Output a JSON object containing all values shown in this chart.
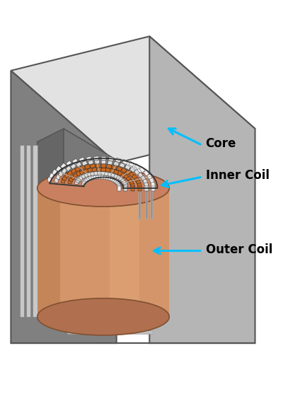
{
  "background_color": "#ffffff",
  "labels": {
    "core": "Core",
    "inner_coil": "Inner Coil",
    "outer_coil": "Outer Coil"
  },
  "label_color": "#000000",
  "arrow_color": "#00BFFF",
  "label_fontsize": 12,
  "label_fontweight": "bold",
  "colors": {
    "core_top_face": "#e8e8e8",
    "core_right_face": "#b8b8b8",
    "core_front_face": "#888888",
    "core_inner_wall": "#707070",
    "core_inner_top": "#aaaaaa",
    "frame_rail_light": "#d0d0d0",
    "frame_rail_dark": "#909090",
    "outer_coil_body": "#d4956a",
    "outer_coil_left": "#b8784a",
    "outer_coil_right": "#e8b080",
    "outer_coil_top_ell": "#c88060",
    "outer_coil_bot_ell": "#b07050",
    "inner_coil_orange": "#c86820",
    "inner_coil_amber": "#d07828",
    "winding_white": "#f0f0f0",
    "winding_border": "#222222"
  }
}
